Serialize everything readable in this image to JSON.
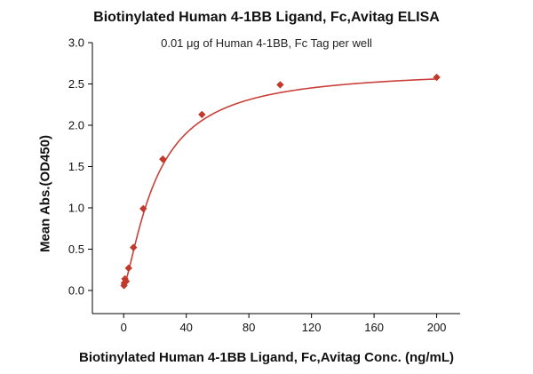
{
  "chart_data": {
    "type": "scatter",
    "title": "Biotinylated Human 4-1BB Ligand, Fc,Avitag ELISA",
    "subtitle": "0.01 μg of Human 4-1BB, Fc Tag per well",
    "xlabel": "Biotinylated Human 4-1BB Ligand, Fc,Avitag Conc. (ng/mL)",
    "ylabel": "Mean Abs.(OD450)",
    "xlim": [
      -20,
      215
    ],
    "ylim": [
      -0.28,
      3.0
    ],
    "x_ticks": [
      0,
      40,
      80,
      120,
      160,
      200
    ],
    "x_tick_labels": [
      "0",
      "40",
      "80",
      "120",
      "160",
      "200"
    ],
    "y_ticks": [
      0.0,
      0.5,
      1.0,
      1.5,
      2.0,
      2.5,
      3.0
    ],
    "y_tick_labels": [
      "0.0",
      "0.5",
      "1.0",
      "1.5",
      "2.0",
      "2.5",
      "3.0"
    ],
    "grid": false,
    "points": {
      "x": [
        0.195,
        0.39,
        0.78,
        1.56,
        3.125,
        6.25,
        12.5,
        25,
        50,
        100,
        200
      ],
      "y": [
        0.06,
        0.09,
        0.14,
        0.11,
        0.27,
        0.52,
        0.99,
        1.59,
        2.13,
        2.49,
        2.58
      ]
    },
    "fit_curve": {
      "type": "four-parameter logistic",
      "bottom": 0.05,
      "top": 2.68,
      "ec50": 21,
      "hill": 1.35
    },
    "colors": {
      "series": "#c0392b",
      "curve": "#c9403a",
      "axis": "#000000"
    }
  }
}
